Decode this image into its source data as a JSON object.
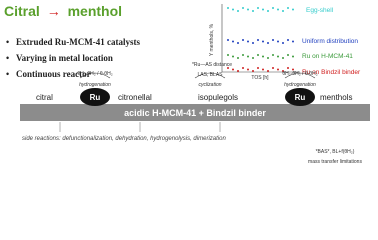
{
  "header": {
    "title_start": "Citral",
    "title_arrow": "→",
    "title_end": "menthol"
  },
  "bullets": [
    "Extruded Ru-MCM-41 catalysts",
    "Varying in metal location",
    "Continuous reactor"
  ],
  "chart": {
    "y_label": "Y menthols, %",
    "x_label": "TOS [h]",
    "legend": [
      {
        "name": "Egg-shell",
        "color": "#33cccc"
      },
      {
        "name": "Uniform distribution",
        "color": "#1f3fbf"
      },
      {
        "name": "Ru on H-MCM-41",
        "color": "#3a9a3a"
      },
      {
        "name": "Ru on Bindzil binder",
        "color": "#d02020"
      }
    ]
  },
  "scheme": {
    "support": "acidic H-MCM-41 + Bindzil binder",
    "metal": "Ru",
    "species": [
      "citral",
      "citronellal",
      "isopulegols",
      "menthols"
    ],
    "steps": {
      "hydrogenation_1": "hydrogenation",
      "rate_1": "θH₂·θH₂ / θ·θH₂",
      "distance": "*Ru—AS distance",
      "acid": "LAS, BLAS",
      "cyclization": "cyclization",
      "hydrogenation_2": "hydrogenation",
      "rate_2": "θH₂·θH₂ / θ·θH₂"
    },
    "side_reactions": "side reactions: defunctionalization, dehydration, hydrogenolysis, dimerization",
    "note_1": "*BAS*, BL+f(θH₂)",
    "note_2": "mass transfer limitations"
  }
}
